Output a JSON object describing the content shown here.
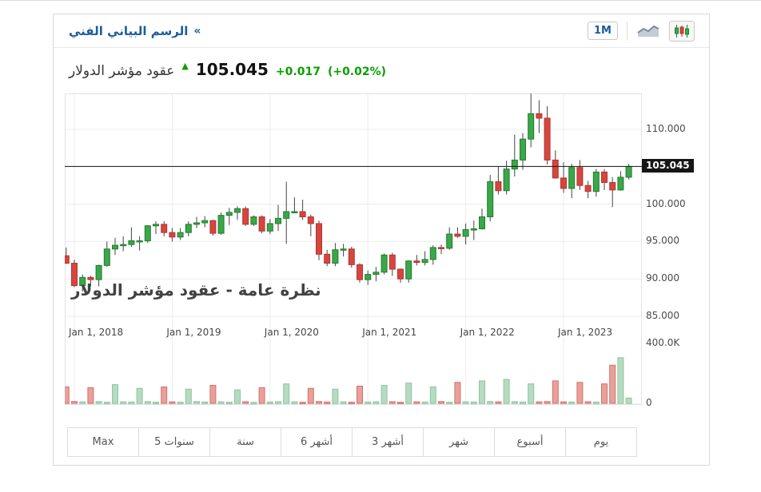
{
  "header": {
    "title": "الرسم البياني الفني",
    "more_glyph": "«",
    "timeframe_label": "1M",
    "icons": [
      "area-chart-icon",
      "candlestick-chart-icon"
    ]
  },
  "quote": {
    "name": "عقود مؤشر الدولار",
    "arrow_glyph": "▲",
    "price": "105.045",
    "change": "+0.017",
    "change_percent": "(+0.02%)"
  },
  "colors": {
    "accent_blue": "#1c5c9e",
    "change_green": "#0a9e00",
    "candle_up_fill": "#3ca64b",
    "candle_up_border": "#1d7f2c",
    "candle_down_fill": "#d6453f",
    "candle_down_border": "#b23531",
    "wick": "#444444",
    "volume_up_fill": "#b5dcc0",
    "volume_up_border": "#8fc4a0",
    "volume_down_fill": "#e9a09b",
    "volume_down_border": "#d4716b",
    "grid": "#ececec",
    "plot_border": "#e3e3e3",
    "current_line": "#161616",
    "tag_bg": "#161616",
    "axis_text": "#454545"
  },
  "range_buttons": [
    "Max",
    "5 سنوات",
    "سنة",
    "6 أشهر",
    "3 أشهر",
    "شهر",
    "أسبوع",
    "يوم"
  ],
  "chart_data": {
    "type": "candlestick_with_volume",
    "watermark": "نظرة عامة - عقود مؤشر الدولار",
    "current_price": 105.045,
    "current_price_label": "105.045",
    "x_axis": {
      "labels": [
        "Jan 1, 2018",
        "Jan 1, 2019",
        "Jan 1, 2020",
        "Jan 1, 2021",
        "Jan 1, 2022",
        "Jan 1, 2023"
      ]
    },
    "y_axis": {
      "ticks": [
        {
          "label": "110.000",
          "value": 110
        },
        {
          "label": "100.000",
          "value": 100
        },
        {
          "label": "95.000",
          "value": 95
        },
        {
          "label": "90.000",
          "value": 90
        },
        {
          "label": "85.000",
          "value": 85
        }
      ],
      "grid_values": [
        110,
        105,
        100,
        95,
        90,
        85
      ],
      "range": [
        84.4,
        114.8
      ]
    },
    "volume_axis": {
      "ticks": [
        {
          "label": "400.0K",
          "value": 400
        },
        {
          "label": "0",
          "value": 0
        }
      ],
      "max_value_k": 400
    },
    "candles_format": [
      "month",
      "open",
      "high",
      "low",
      "close",
      "volume_k"
    ],
    "candles": [
      [
        "2017-12",
        93.1,
        94.2,
        92.0,
        92.1,
        110
      ],
      [
        "2018-01",
        92.1,
        92.6,
        88.9,
        89.1,
        12
      ],
      [
        "2018-02",
        89.1,
        90.6,
        88.3,
        90.2,
        10
      ],
      [
        "2018-03",
        90.2,
        90.4,
        89.0,
        89.9,
        105
      ],
      [
        "2018-04",
        89.9,
        91.9,
        89.0,
        91.8,
        12
      ],
      [
        "2018-05",
        91.8,
        95.0,
        91.6,
        94.0,
        8
      ],
      [
        "2018-06",
        94.0,
        95.5,
        93.2,
        94.5,
        125
      ],
      [
        "2018-07",
        94.5,
        95.7,
        93.7,
        94.6,
        10
      ],
      [
        "2018-08",
        94.6,
        96.9,
        94.3,
        95.1,
        9
      ],
      [
        "2018-09",
        95.1,
        95.7,
        93.8,
        95.1,
        100
      ],
      [
        "2018-10",
        95.1,
        97.2,
        94.8,
        97.1,
        12
      ],
      [
        "2018-11",
        97.1,
        97.7,
        96.0,
        97.3,
        8
      ],
      [
        "2018-12",
        97.3,
        97.7,
        95.7,
        96.2,
        110
      ],
      [
        "2019-01",
        96.2,
        96.8,
        95.0,
        95.6,
        10
      ],
      [
        "2019-02",
        95.6,
        96.8,
        95.2,
        96.2,
        8
      ],
      [
        "2019-03",
        96.2,
        97.7,
        95.7,
        97.3,
        95
      ],
      [
        "2019-04",
        97.3,
        98.3,
        96.8,
        97.5,
        12
      ],
      [
        "2019-05",
        97.5,
        98.4,
        96.9,
        97.8,
        9
      ],
      [
        "2019-06",
        97.8,
        97.9,
        95.8,
        96.1,
        120
      ],
      [
        "2019-07",
        96.1,
        98.9,
        95.9,
        98.5,
        10
      ],
      [
        "2019-08",
        98.5,
        99.5,
        97.2,
        98.9,
        8
      ],
      [
        "2019-09",
        98.9,
        99.7,
        97.9,
        99.4,
        90
      ],
      [
        "2019-10",
        99.4,
        99.7,
        97.1,
        97.3,
        11
      ],
      [
        "2019-11",
        97.3,
        98.5,
        97.1,
        98.3,
        7
      ],
      [
        "2019-12",
        98.3,
        98.5,
        96.1,
        96.4,
        105
      ],
      [
        "2020-01",
        96.4,
        98.0,
        96.0,
        97.4,
        9
      ],
      [
        "2020-02",
        97.4,
        99.9,
        96.4,
        98.1,
        11
      ],
      [
        "2020-03",
        98.1,
        103.0,
        94.7,
        99.0,
        130
      ],
      [
        "2020-04",
        99.0,
        100.9,
        98.8,
        99.0,
        10
      ],
      [
        "2020-05",
        99.0,
        100.6,
        97.9,
        98.3,
        8
      ],
      [
        "2020-06",
        98.3,
        98.6,
        95.7,
        97.4,
        100
      ],
      [
        "2020-07",
        97.4,
        97.8,
        92.5,
        93.3,
        12
      ],
      [
        "2020-08",
        93.3,
        93.9,
        91.7,
        92.1,
        9
      ],
      [
        "2020-09",
        92.1,
        94.8,
        91.7,
        93.9,
        95
      ],
      [
        "2020-10",
        93.9,
        94.7,
        93.0,
        94.0,
        10
      ],
      [
        "2020-11",
        94.0,
        94.3,
        91.5,
        91.9,
        8
      ],
      [
        "2020-12",
        91.9,
        92.1,
        89.5,
        89.9,
        115
      ],
      [
        "2021-01",
        89.9,
        91.1,
        89.2,
        90.6,
        9
      ],
      [
        "2021-02",
        90.6,
        91.6,
        89.7,
        90.9,
        10
      ],
      [
        "2021-03",
        90.9,
        93.4,
        90.6,
        93.2,
        120
      ],
      [
        "2021-04",
        93.2,
        93.5,
        90.4,
        91.3,
        11
      ],
      [
        "2021-05",
        91.3,
        91.4,
        89.5,
        90.0,
        8
      ],
      [
        "2021-06",
        90.0,
        92.5,
        89.5,
        92.4,
        135
      ],
      [
        "2021-07",
        92.4,
        93.2,
        91.8,
        92.2,
        10
      ],
      [
        "2021-08",
        92.2,
        93.7,
        91.8,
        92.6,
        9
      ],
      [
        "2021-09",
        92.6,
        94.5,
        91.9,
        94.2,
        110
      ],
      [
        "2021-10",
        94.2,
        94.6,
        93.3,
        94.1,
        12
      ],
      [
        "2021-11",
        94.1,
        96.9,
        93.9,
        96.0,
        8
      ],
      [
        "2021-12",
        96.0,
        96.9,
        95.5,
        95.7,
        140
      ],
      [
        "2022-01",
        95.7,
        97.4,
        94.6,
        96.6,
        10
      ],
      [
        "2022-02",
        96.6,
        97.8,
        95.2,
        96.7,
        9
      ],
      [
        "2022-03",
        96.7,
        99.4,
        96.6,
        98.3,
        150
      ],
      [
        "2022-04",
        98.3,
        103.9,
        97.7,
        103.0,
        12
      ],
      [
        "2022-05",
        103.0,
        105.0,
        101.3,
        101.8,
        10
      ],
      [
        "2022-06",
        101.8,
        105.8,
        101.3,
        104.7,
        160
      ],
      [
        "2022-07",
        104.7,
        109.3,
        103.7,
        105.9,
        11
      ],
      [
        "2022-08",
        105.9,
        109.5,
        104.6,
        108.7,
        9
      ],
      [
        "2022-09",
        108.7,
        114.8,
        107.6,
        112.1,
        130
      ],
      [
        "2022-10",
        112.1,
        113.9,
        109.5,
        111.5,
        10
      ],
      [
        "2022-11",
        111.5,
        113.1,
        105.3,
        105.9,
        12
      ],
      [
        "2022-12",
        105.9,
        107.2,
        103.4,
        103.5,
        150
      ],
      [
        "2023-01",
        103.5,
        105.6,
        101.5,
        102.1,
        10
      ],
      [
        "2023-02",
        102.1,
        105.4,
        100.8,
        104.9,
        9
      ],
      [
        "2023-03",
        104.9,
        105.9,
        101.9,
        102.5,
        140
      ],
      [
        "2023-04",
        102.5,
        103.1,
        100.8,
        101.7,
        11
      ],
      [
        "2023-05",
        101.7,
        104.7,
        101.0,
        104.3,
        9
      ],
      [
        "2023-06",
        104.3,
        104.7,
        101.9,
        102.9,
        130
      ],
      [
        "2023-07",
        102.9,
        103.6,
        99.6,
        101.9,
        255
      ],
      [
        "2023-08",
        101.9,
        104.4,
        101.8,
        103.6,
        305
      ],
      [
        "2023-09",
        103.6,
        105.4,
        103.3,
        105.045,
        35
      ]
    ]
  }
}
